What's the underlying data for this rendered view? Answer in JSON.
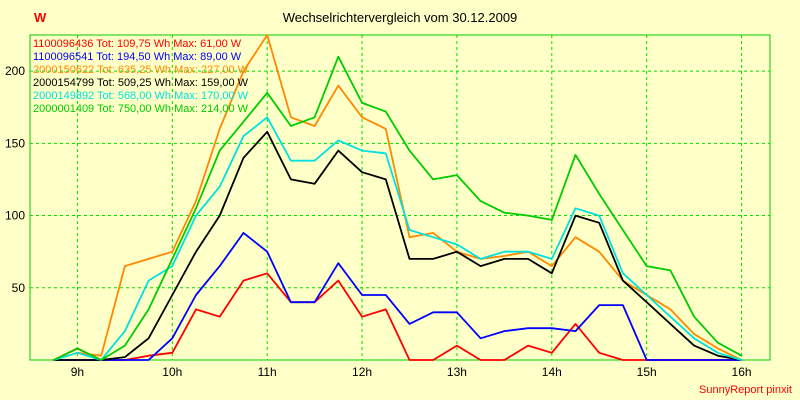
{
  "title": "Wechselrichtervergleich vom 30.12.2009",
  "unit_label": "W",
  "footer": "SunnyReport pinxit",
  "colors": {
    "background": "#FFFFC8",
    "grid": "#00DD00",
    "border": "#00CC00",
    "axis_text": "#000000",
    "title_text": "#000000",
    "footer_text": "#FF0000",
    "unit_text": "#FF0000"
  },
  "chart_data": {
    "type": "line",
    "title": "Wechselrichtervergleich vom 30.12.2009",
    "xlabel": "",
    "ylabel": "W",
    "xlim": [
      8.5,
      16.3
    ],
    "ylim": [
      0,
      225
    ],
    "grid": true,
    "legend_position": "top-left-inside",
    "y_ticks": [
      50,
      100,
      150,
      200
    ],
    "x_ticks": [
      {
        "value": 9,
        "label": "9h"
      },
      {
        "value": 10,
        "label": "10h"
      },
      {
        "value": 11,
        "label": "11h"
      },
      {
        "value": 12,
        "label": "12h"
      },
      {
        "value": 13,
        "label": "13h"
      },
      {
        "value": 14,
        "label": "14h"
      },
      {
        "value": 15,
        "label": "15h"
      },
      {
        "value": 16,
        "label": "16h"
      }
    ],
    "x": [
      8.75,
      9,
      9.25,
      9.5,
      9.75,
      10,
      10.25,
      10.5,
      10.75,
      11,
      11.25,
      11.5,
      11.75,
      12,
      12.25,
      12.5,
      12.75,
      13,
      13.25,
      13.5,
      13.75,
      14,
      14.25,
      14.5,
      14.75,
      15,
      15.25,
      15.5,
      15.75,
      16
    ],
    "series": [
      {
        "id": "1100096436",
        "tot": "109,75 Wh",
        "max": "61,00 W",
        "label": "1100096436 Tot: 109,75 Wh Max: 61,00 W",
        "color": "#FF0000",
        "values": [
          0,
          8,
          0,
          0,
          3,
          5,
          35,
          30,
          55,
          60,
          40,
          40,
          55,
          30,
          35,
          0,
          0,
          10,
          0,
          0,
          10,
          5,
          25,
          5,
          0,
          0,
          0,
          0,
          0,
          0
        ]
      },
      {
        "id": "1100096541",
        "tot": "194,50 Wh",
        "max": "89,00 W",
        "label": "1100096541 Tot: 194,50 Wh Max: 89,00 W",
        "color": "#0000FF",
        "values": [
          0,
          0,
          0,
          0,
          0,
          15,
          45,
          65,
          88,
          75,
          40,
          40,
          67,
          45,
          45,
          25,
          33,
          33,
          15,
          20,
          22,
          22,
          20,
          38,
          38,
          0,
          0,
          0,
          0,
          0
        ]
      },
      {
        "id": "2000150622",
        "tot": "635,25 Wh",
        "max": "227,00 W",
        "label": "2000150622 Tot: 635,25 Wh Max: 227,00 W",
        "color": "#FF8800",
        "values": [
          0,
          5,
          3,
          65,
          70,
          75,
          110,
          160,
          200,
          225,
          168,
          162,
          190,
          168,
          160,
          85,
          88,
          75,
          70,
          72,
          75,
          65,
          85,
          75,
          55,
          45,
          35,
          18,
          8,
          0
        ]
      },
      {
        "id": "2000154799",
        "tot": "509,25 Wh",
        "max": "159,00 W",
        "label": "2000154799 Tot: 509,25 Wh Max: 159,00 W",
        "color": "#000000",
        "values": [
          0,
          0,
          0,
          2,
          15,
          45,
          75,
          100,
          140,
          158,
          125,
          122,
          145,
          130,
          125,
          70,
          70,
          75,
          65,
          70,
          70,
          60,
          100,
          95,
          55,
          40,
          25,
          10,
          3,
          0
        ]
      },
      {
        "id": "2000149892",
        "tot": "568,00 Wh",
        "max": "170,00 W",
        "label": "2000149892 Tot: 568,00 Wh Max: 170,00 W",
        "color": "#00E0E0",
        "values": [
          0,
          5,
          0,
          20,
          55,
          65,
          100,
          120,
          155,
          168,
          138,
          138,
          152,
          145,
          143,
          90,
          85,
          80,
          70,
          75,
          75,
          70,
          105,
          100,
          60,
          45,
          30,
          15,
          5,
          0
        ]
      },
      {
        "id": "2000001409",
        "tot": "750,00 Wh",
        "max": "214,00 W",
        "label": "2000001409 Tot: 750,00 Wh Max: 214,00 W",
        "color": "#00CC00",
        "values": [
          0,
          8,
          0,
          10,
          35,
          70,
          105,
          145,
          165,
          185,
          162,
          168,
          210,
          178,
          172,
          145,
          125,
          128,
          110,
          102,
          100,
          97,
          142,
          115,
          90,
          65,
          62,
          30,
          12,
          3
        ]
      }
    ]
  }
}
